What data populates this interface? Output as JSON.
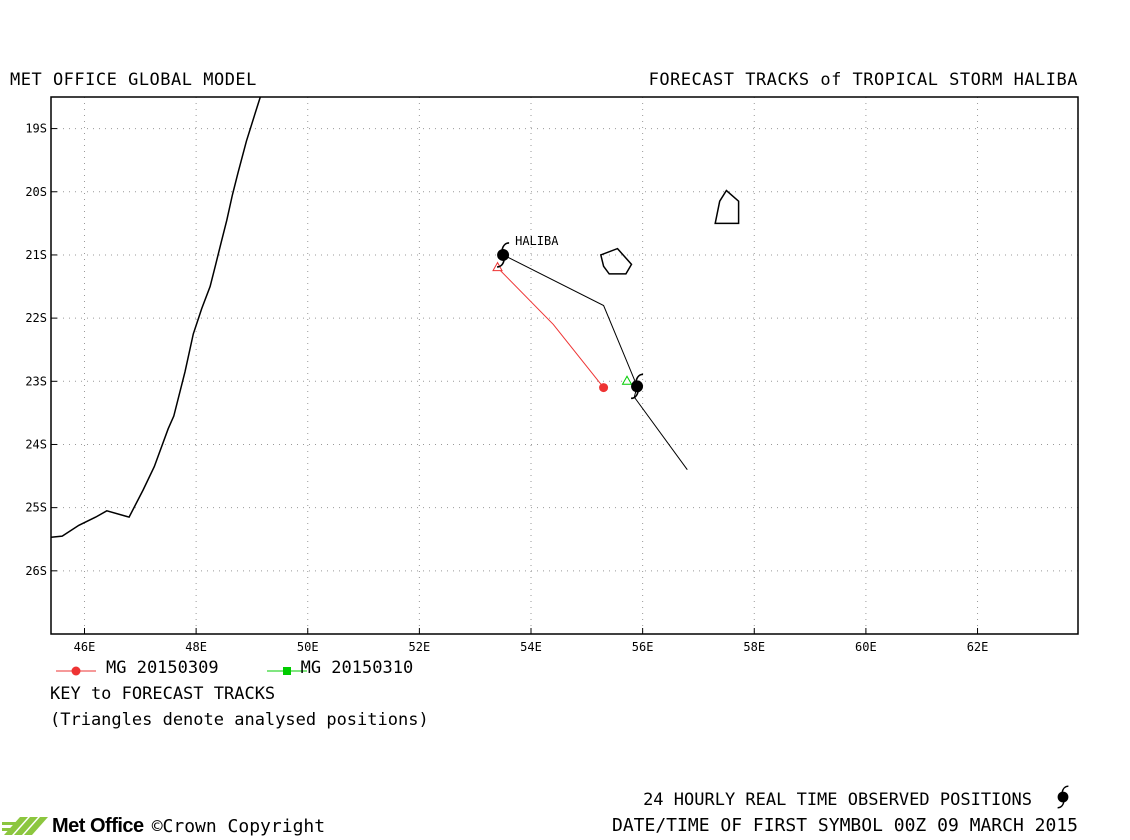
{
  "header": {
    "left_title": "MET OFFICE GLOBAL MODEL",
    "right_title": "FORECAST TRACKS of TROPICAL STORM HALIBA"
  },
  "chart_data": {
    "type": "map",
    "title": "FORECAST TRACKS of TROPICAL STORM HALIBA",
    "xlim": [
      45.4,
      63.8
    ],
    "ylim": [
      -27.0,
      -18.5
    ],
    "x_ticks": [
      46,
      48,
      50,
      52,
      54,
      56,
      58,
      60,
      62
    ],
    "x_tick_labels": [
      "46E",
      "48E",
      "50E",
      "52E",
      "54E",
      "56E",
      "58E",
      "60E",
      "62E"
    ],
    "y_ticks": [
      -19,
      -20,
      -21,
      -22,
      -23,
      -24,
      -25,
      -26
    ],
    "y_tick_labels": [
      "19S",
      "20S",
      "21S",
      "22S",
      "23S",
      "24S",
      "25S",
      "26S"
    ],
    "grid": true,
    "storm_label": "HALIBA",
    "coastline_madagascar": [
      [
        45.4,
        -25.47
      ],
      [
        45.6,
        -25.45
      ],
      [
        45.9,
        -25.28
      ],
      [
        46.2,
        -25.15
      ],
      [
        46.4,
        -25.05
      ],
      [
        46.8,
        -25.15
      ],
      [
        47.05,
        -24.72
      ],
      [
        47.25,
        -24.35
      ],
      [
        47.5,
        -23.75
      ],
      [
        47.6,
        -23.55
      ],
      [
        47.8,
        -22.85
      ],
      [
        47.95,
        -22.25
      ],
      [
        48.1,
        -21.85
      ],
      [
        48.25,
        -21.5
      ],
      [
        48.35,
        -21.15
      ],
      [
        48.45,
        -20.8
      ],
      [
        48.55,
        -20.45
      ],
      [
        48.65,
        -20.05
      ],
      [
        48.75,
        -19.7
      ],
      [
        48.9,
        -19.2
      ],
      [
        49.05,
        -18.78
      ],
      [
        49.15,
        -18.5
      ]
    ],
    "islands": [
      {
        "name": "La Reunion",
        "points": [
          [
            55.25,
            -21.0
          ],
          [
            55.55,
            -20.9
          ],
          [
            55.8,
            -21.15
          ],
          [
            55.7,
            -21.3
          ],
          [
            55.4,
            -21.3
          ],
          [
            55.3,
            -21.18
          ],
          [
            55.25,
            -21.0
          ]
        ]
      },
      {
        "name": "Mauritius",
        "points": [
          [
            57.3,
            -20.5
          ],
          [
            57.38,
            -20.15
          ],
          [
            57.5,
            -19.98
          ],
          [
            57.72,
            -20.15
          ],
          [
            57.72,
            -20.5
          ],
          [
            57.3,
            -20.5
          ]
        ]
      }
    ],
    "observed_track": [
      [
        56.8,
        -24.4
      ],
      [
        55.85,
        -23.25
      ],
      [
        55.9,
        -23.08
      ],
      [
        55.7,
        -22.65
      ],
      [
        55.3,
        -21.8
      ],
      [
        53.5,
        -21.0
      ]
    ],
    "observed_symbols": [
      {
        "lon": 53.5,
        "lat": -21.0
      },
      {
        "lon": 55.9,
        "lat": -23.08
      }
    ],
    "series": [
      {
        "name": "MG 20150309",
        "color": "#ee3333",
        "marker": "circle",
        "points": [
          [
            53.4,
            -21.2
          ],
          [
            54.4,
            -22.1
          ],
          [
            55.3,
            -23.1
          ]
        ]
      },
      {
        "name": "MG 20150310",
        "color": "#00cc00",
        "marker": "square",
        "points": [
          [
            55.72,
            -23.0
          ]
        ]
      }
    ]
  },
  "key": {
    "title": "KEY to FORECAST TRACKS",
    "note": "(Triangles denote analysed positions)"
  },
  "footer": {
    "brand": "Met Office",
    "copyright": "©Crown Copyright",
    "line1": "24 HOURLY REAL TIME OBSERVED POSITIONS",
    "line2": "DATE/TIME OF FIRST SYMBOL 00Z 09 MARCH 2015"
  }
}
